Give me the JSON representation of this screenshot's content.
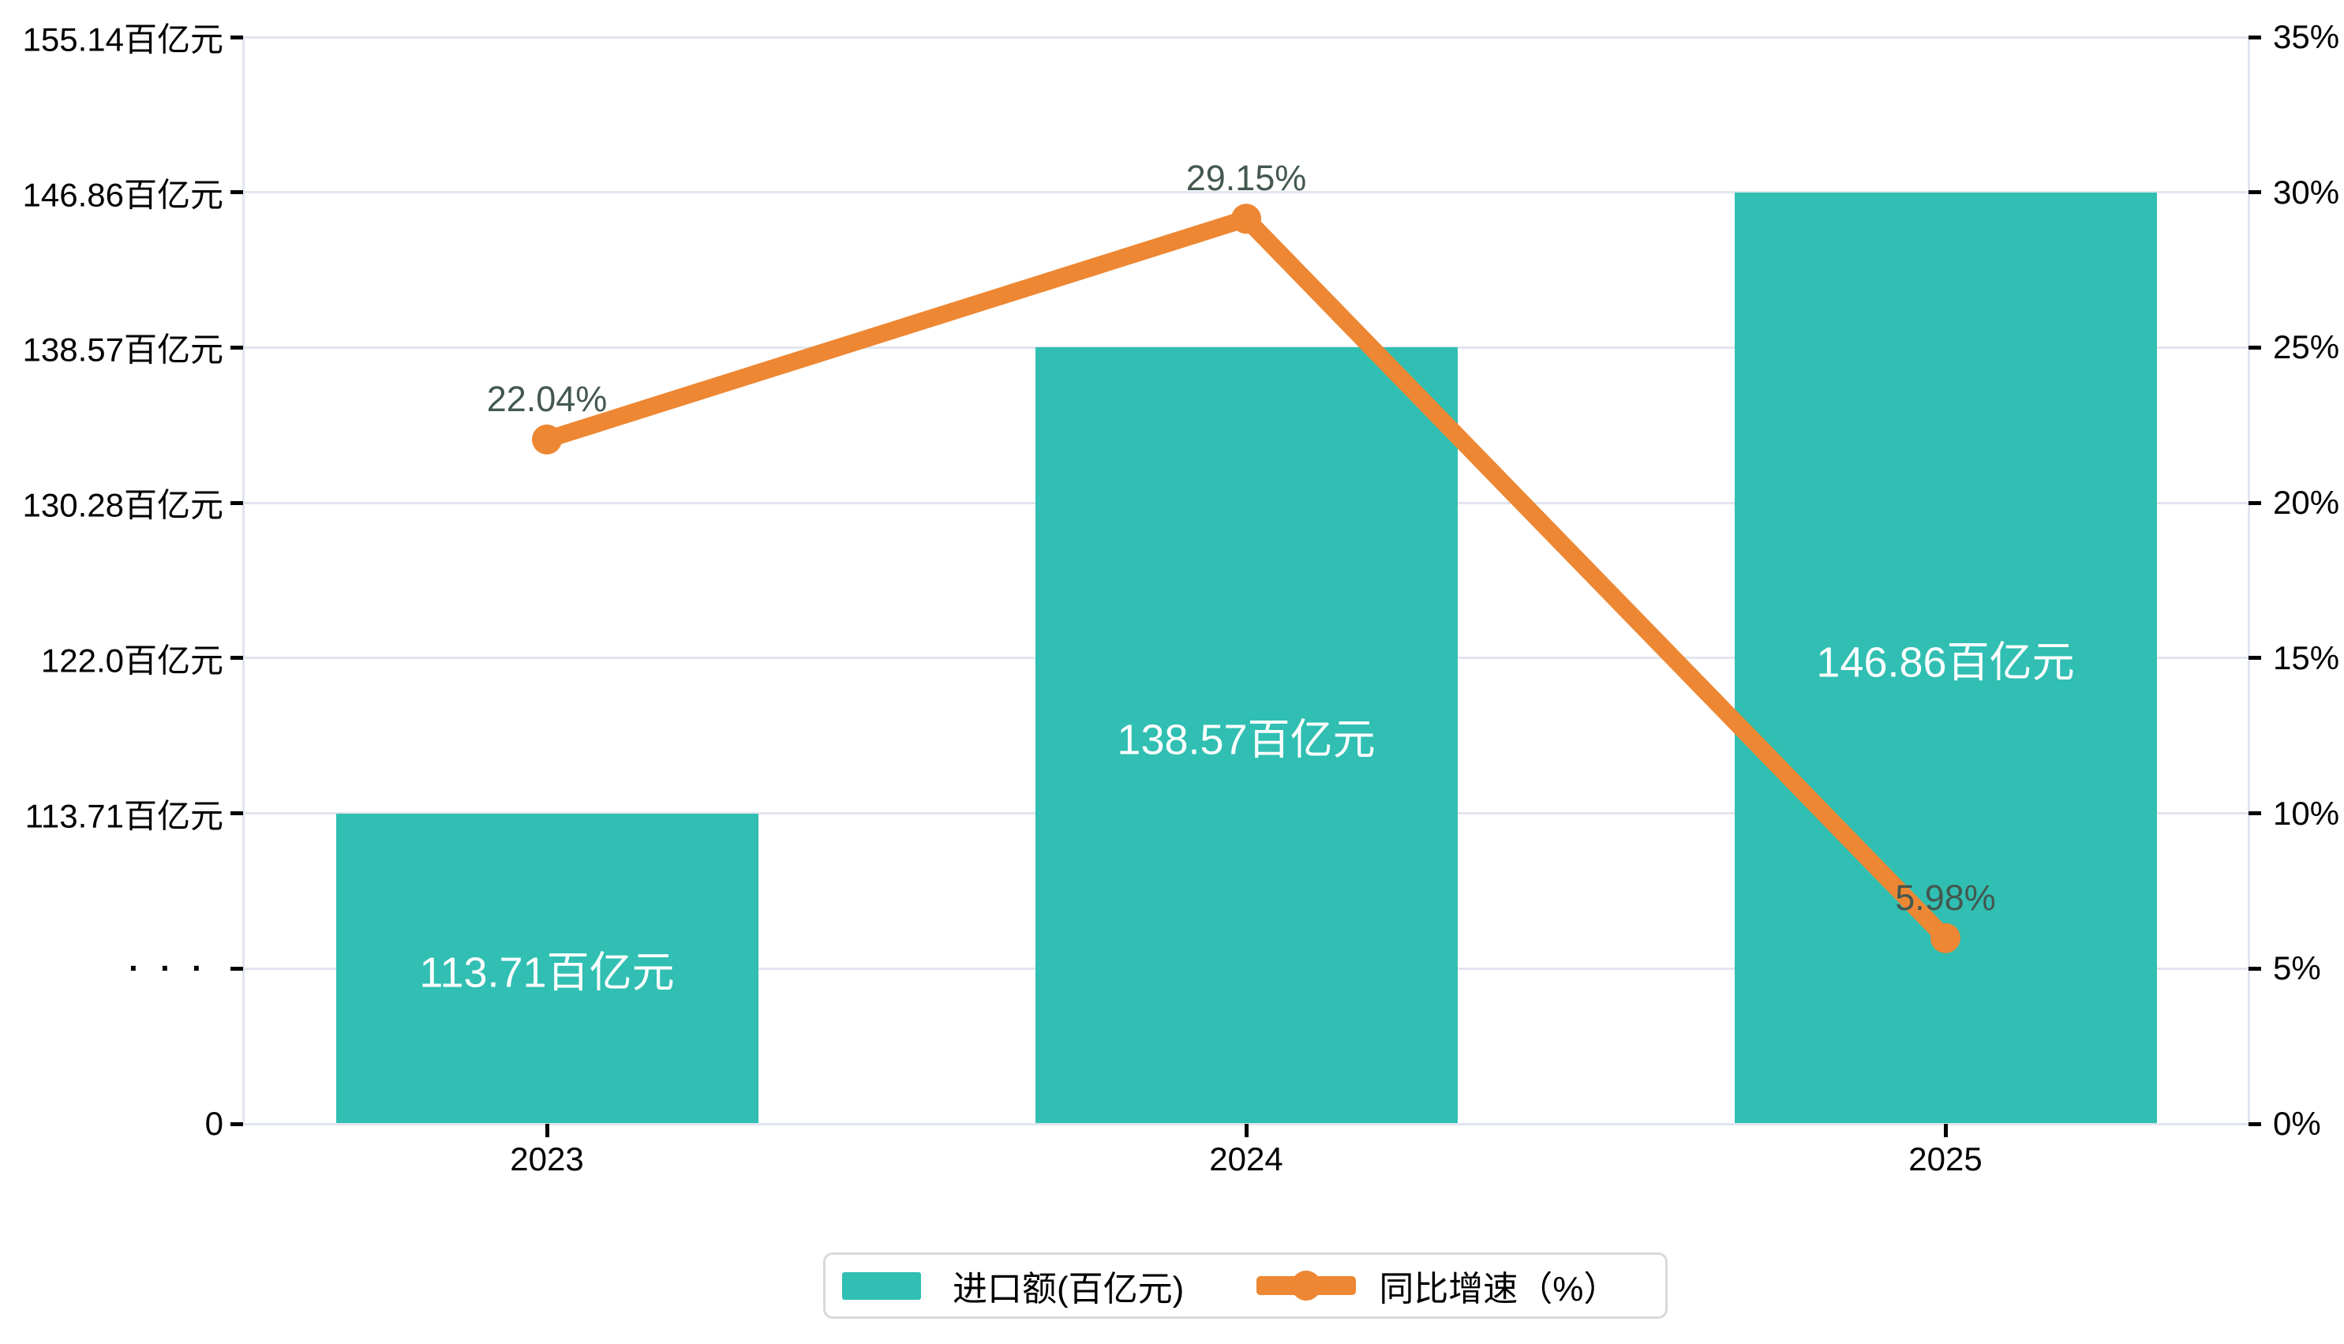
{
  "colors": {
    "bar": "#30BFB2",
    "line": "#ED8733",
    "grid": "#E1E5EF",
    "axis_tick": "#000000",
    "axis_label": "#000000",
    "point_label": "#44584F",
    "bar_label": "#FFFFFF",
    "legend_border": "#D9D9D9",
    "background": "#FFFFFF"
  },
  "chart_data": {
    "type": "combo",
    "title": "",
    "categories": [
      "2023",
      "2024",
      "2025"
    ],
    "series": [
      {
        "name": "进口额(百亿元)",
        "type": "bar",
        "values": [
          113.71,
          138.57,
          146.86
        ],
        "labels": [
          "113.71百亿元",
          "138.57百亿元",
          "146.86百亿元"
        ],
        "axis": "left",
        "color": "#30BFB2"
      },
      {
        "name": "同比增速（%）",
        "type": "line",
        "values": [
          22.04,
          29.15,
          5.98
        ],
        "labels": [
          "22.04%",
          "29.15%",
          "5.98%"
        ],
        "axis": "right",
        "color": "#ED8733"
      }
    ],
    "left_axis": {
      "tick_labels": [
        "155.14百亿元",
        "146.86百亿元",
        "138.57百亿元",
        "130.28百亿元",
        "122.0百亿元",
        "113.71百亿元",
        "···",
        "0"
      ],
      "tick_values": [
        155.14,
        146.86,
        138.57,
        130.28,
        122.0,
        113.71,
        null,
        0
      ],
      "broken_axis": true
    },
    "right_axis": {
      "tick_labels": [
        "35%",
        "30%",
        "25%",
        "20%",
        "15%",
        "10%",
        "5%",
        "0%"
      ],
      "min": 0,
      "max": 35
    },
    "grid": true,
    "legend_position": "bottom"
  },
  "legend": {
    "items": [
      {
        "label": "进口额(百亿元)",
        "icon": "bar-swatch"
      },
      {
        "label": "同比增速（%）",
        "icon": "line-marker"
      }
    ]
  }
}
